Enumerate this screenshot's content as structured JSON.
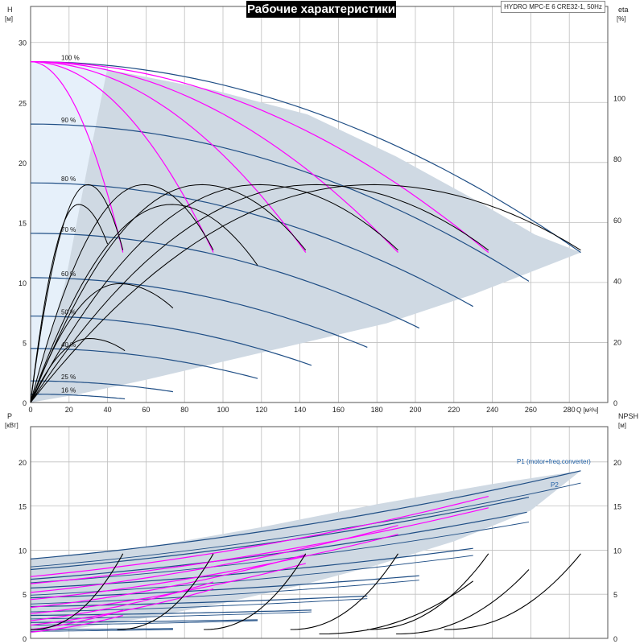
{
  "title": "Рабочие характеристики",
  "model": "HYDRO MPC-E 6 CRE32-1, 50Hz",
  "colors": {
    "envelope": "#cfd9e3",
    "envelope_light": "#e6f0fa",
    "curve_blue": "#1f4e85",
    "curve_magenta": "#ff00ff",
    "curve_black": "#000000",
    "grid": "#bfbfbf",
    "label_blue": "#1f5fa5"
  },
  "top_axes": {
    "left_label": "H",
    "left_unit": "[м]",
    "right_label": "eta",
    "right_unit": "[%]",
    "x_label": "Q [м³/ч]"
  },
  "bottom_axes": {
    "left_label": "P",
    "left_unit": "[кВт]",
    "right_label": "NPSH",
    "right_unit": "[м]"
  },
  "legend_labels": {
    "p1": "P1 (motor+freq.converter)",
    "p2": "P2"
  },
  "chart_data": [
    {
      "type": "line",
      "name": "head",
      "xlim": [
        0,
        300
      ],
      "ylim": [
        0,
        33
      ],
      "y2lim": [
        0,
        130
      ],
      "xticks": [
        "0",
        "20",
        "40",
        "60",
        "80",
        "100",
        "120",
        "140",
        "160",
        "180",
        "200",
        "220",
        "240",
        "260",
        "280"
      ],
      "yticks": [
        "0",
        "5",
        "10",
        "15",
        "20",
        "25",
        "30"
      ],
      "y2ticks": [
        "0",
        "20",
        "40",
        "60",
        "80",
        "100"
      ],
      "speed_labels": [
        {
          "text": "100 %",
          "h": 28.4
        },
        {
          "text": "90 %",
          "h": 23.2
        },
        {
          "text": "80 %",
          "h": 18.3
        },
        {
          "text": "70 %",
          "h": 14.1
        },
        {
          "text": "60 %",
          "h": 10.4
        },
        {
          "text": "50 %",
          "h": 7.2
        },
        {
          "text": "40 %",
          "h": 4.5
        },
        {
          "text": "25 %",
          "h": 1.8
        },
        {
          "text": "16 %",
          "h": 0.7
        }
      ],
      "envelope": [
        [
          0,
          28.4
        ],
        [
          48,
          27.5
        ],
        [
          96,
          26.0
        ],
        [
          144,
          24.0
        ],
        [
          190,
          20.5
        ],
        [
          232,
          16.8
        ],
        [
          262,
          14.0
        ],
        [
          286,
          12.5
        ],
        [
          230,
          9.0
        ],
        [
          185,
          6.6
        ],
        [
          140,
          4.9
        ],
        [
          100,
          3.4
        ],
        [
          60,
          1.9
        ],
        [
          25,
          0.7
        ],
        [
          0,
          0
        ]
      ],
      "pump_curves_blue": [
        {
          "shutoff": 28.4,
          "qmax": 286,
          "hend": 12.5
        },
        {
          "shutoff": 23.2,
          "qmax": 259,
          "hend": 10.1
        },
        {
          "shutoff": 18.3,
          "qmax": 230,
          "hend": 8.0
        },
        {
          "shutoff": 14.1,
          "qmax": 202,
          "hend": 6.2
        },
        {
          "shutoff": 10.4,
          "qmax": 175,
          "hend": 4.6
        },
        {
          "shutoff": 7.2,
          "qmax": 146,
          "hend": 3.1
        },
        {
          "shutoff": 4.5,
          "qmax": 118,
          "hend": 2.0
        },
        {
          "shutoff": 1.8,
          "qmax": 74,
          "hend": 0.9
        },
        {
          "shutoff": 0.7,
          "qmax": 49,
          "hend": 0.3
        }
      ],
      "pump_curves_magenta": [
        {
          "shutoff": 28.4,
          "qmax": 48,
          "hend": 12.5
        },
        {
          "shutoff": 28.4,
          "qmax": 95,
          "hend": 12.5
        },
        {
          "shutoff": 28.4,
          "qmax": 143,
          "hend": 12.5
        },
        {
          "shutoff": 28.4,
          "qmax": 191,
          "hend": 12.5
        },
        {
          "shutoff": 28.4,
          "qmax": 238,
          "hend": 12.5
        }
      ],
      "eta_curves": [
        {
          "q0": 0,
          "q1": 48,
          "peak": 71.5,
          "end": 50
        },
        {
          "q0": 0,
          "q1": 95,
          "peak": 71.5,
          "end": 50
        },
        {
          "q0": 0,
          "q1": 143,
          "peak": 71.5,
          "end": 50
        },
        {
          "q0": 0,
          "q1": 191,
          "peak": 71.5,
          "end": 50
        },
        {
          "q0": 0,
          "q1": 238,
          "peak": 71.5,
          "end": 50
        },
        {
          "q0": 0,
          "q1": 286,
          "peak": 71.5,
          "end": 50
        },
        {
          "q0": 0,
          "q1": 40,
          "peak": 65,
          "end": 52
        },
        {
          "q0": 0,
          "q1": 118,
          "peak": 65,
          "end": 45
        },
        {
          "q0": 0,
          "q1": 74,
          "peak": 39,
          "end": 31
        },
        {
          "q0": 0,
          "q1": 49,
          "peak": 21,
          "end": 17
        }
      ]
    },
    {
      "type": "line",
      "name": "power",
      "xlim": [
        0,
        300
      ],
      "ylim": [
        0,
        24
      ],
      "yticks": [
        "0",
        "5",
        "10",
        "15",
        "20"
      ],
      "y2ticks": [
        "0",
        "5",
        "10",
        "15",
        "20"
      ],
      "envelope": [
        [
          0,
          9.0
        ],
        [
          60,
          10.3
        ],
        [
          120,
          12.6
        ],
        [
          180,
          15.2
        ],
        [
          240,
          17.5
        ],
        [
          286,
          19.0
        ],
        [
          260,
          14.5
        ],
        [
          220,
          11.0
        ],
        [
          180,
          8.3
        ],
        [
          140,
          6.0
        ],
        [
          100,
          4.0
        ],
        [
          60,
          2.3
        ],
        [
          20,
          1.0
        ],
        [
          0,
          0.6
        ]
      ],
      "p1_curves": [
        {
          "q1": 286,
          "p0": 9.0,
          "p1": 19.0
        },
        {
          "q1": 259,
          "p0": 7.8,
          "p1": 16.0
        },
        {
          "q1": 258,
          "p0": 6.7,
          "p1": 14.3
        },
        {
          "q1": 230,
          "p0": 5.7,
          "p1": 10.2
        },
        {
          "q1": 202,
          "p0": 4.6,
          "p1": 7.1
        },
        {
          "q1": 175,
          "p0": 3.6,
          "p1": 4.8
        },
        {
          "q1": 146,
          "p0": 2.6,
          "p1": 3.2
        },
        {
          "q1": 118,
          "p0": 1.8,
          "p1": 2.1
        },
        {
          "q1": 74,
          "p0": 1.0,
          "p1": 1.1
        }
      ],
      "p2_curves": [
        {
          "q1": 286,
          "p0": 8.1,
          "p1": 17.6
        },
        {
          "q1": 259,
          "p0": 6.3,
          "p1": 13.2
        },
        {
          "q1": 230,
          "p0": 4.9,
          "p1": 9.4
        },
        {
          "q1": 202,
          "p0": 3.9,
          "p1": 6.6
        },
        {
          "q1": 175,
          "p0": 3.0,
          "p1": 4.5
        },
        {
          "q1": 146,
          "p0": 2.2,
          "p1": 3.0
        },
        {
          "q1": 118,
          "p0": 1.5,
          "p1": 2.0
        },
        {
          "q1": 74,
          "p0": 0.8,
          "p1": 1.0
        }
      ],
      "magenta_curves": [
        {
          "q1": 238,
          "p0": 7.0,
          "p1": 16.1
        },
        {
          "q1": 238,
          "p0": 6.2,
          "p1": 14.8
        },
        {
          "q1": 191,
          "p0": 5.2,
          "p1": 12.8
        },
        {
          "q1": 191,
          "p0": 4.4,
          "p1": 11.8
        },
        {
          "q1": 143,
          "p0": 3.5,
          "p1": 9.5
        },
        {
          "q1": 143,
          "p0": 2.8,
          "p1": 8.5
        },
        {
          "q1": 95,
          "p0": 2.0,
          "p1": 6.4
        },
        {
          "q1": 95,
          "p0": 1.5,
          "p1": 5.6
        },
        {
          "q1": 48,
          "p0": 1.0,
          "p1": 3.2
        },
        {
          "q1": 48,
          "p0": 0.7,
          "p1": 2.6
        }
      ],
      "npsh_curves": [
        {
          "q0": 0,
          "q1": 48,
          "n0": 1.0,
          "n1": 9.6
        },
        {
          "q0": 45,
          "q1": 95,
          "n0": 1.0,
          "n1": 9.6
        },
        {
          "q0": 90,
          "q1": 143,
          "n0": 1.0,
          "n1": 9.6
        },
        {
          "q0": 135,
          "q1": 191,
          "n0": 1.0,
          "n1": 9.6
        },
        {
          "q0": 175,
          "q1": 238,
          "n0": 1.0,
          "n1": 9.6
        },
        {
          "q0": 215,
          "q1": 286,
          "n0": 1.0,
          "n1": 9.6
        },
        {
          "q0": 150,
          "q1": 230,
          "n0": 0.5,
          "n1": 6.5
        },
        {
          "q0": 190,
          "q1": 259,
          "n0": 0.5,
          "n1": 7.8
        }
      ]
    }
  ]
}
